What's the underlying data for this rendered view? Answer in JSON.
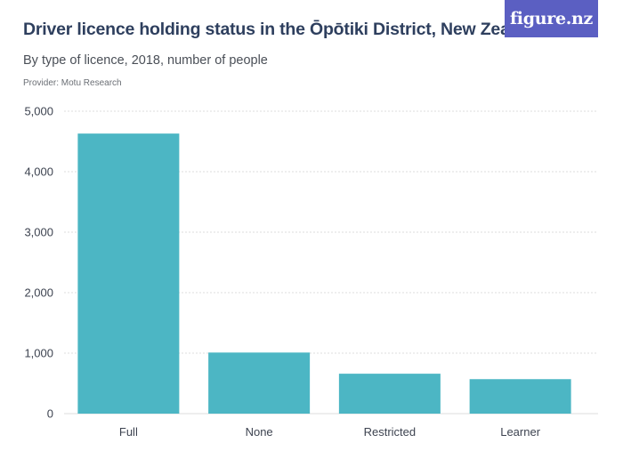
{
  "header": {
    "title": "Driver licence holding status in the Ōpōtiki District, New Zealand",
    "subtitle": "By type of licence, 2018, number of people",
    "provider": "Provider: Motu Research",
    "logo_text": "figure.nz"
  },
  "colors": {
    "bar": "#4cb6c4",
    "grid": "#dcdcdc",
    "logo_bg": "#5b5fc2"
  },
  "chart_data": {
    "type": "bar",
    "categories": [
      "Full",
      "None",
      "Restricted",
      "Learner"
    ],
    "values": [
      4630,
      1010,
      660,
      570
    ],
    "ylim": [
      0,
      5000
    ],
    "yticks": [
      0,
      1000,
      2000,
      3000,
      4000,
      5000
    ],
    "ytick_labels": [
      "0",
      "1,000",
      "2,000",
      "3,000",
      "4,000",
      "5,000"
    ],
    "grid": true
  }
}
